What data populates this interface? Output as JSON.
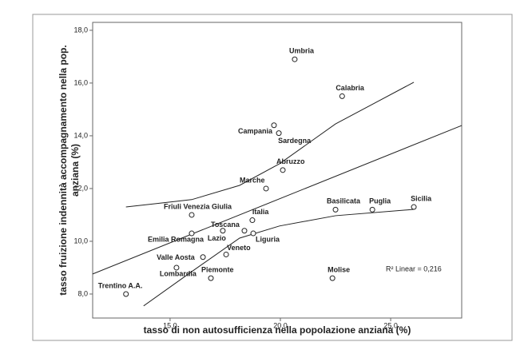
{
  "chart_data": {
    "type": "scatter",
    "xlabel": "tasso di non autosufficienza nella popolazione anziana (%)",
    "ylabel": [
      "tasso fruizione indennità accompagnamento nella pop.",
      "anziana (%)"
    ],
    "annotation": "R² Linear = 0,216",
    "point_labels": [
      "Umbria",
      "Calabria",
      "Campania",
      "Sardegna",
      "Abruzzo",
      "Marche",
      "Friuli Venezia Giulia",
      "Basilicata",
      "Puglia",
      "Sicilia",
      "Italia",
      "Toscana",
      "Lazio",
      "Emilia Romagna",
      "Liguria",
      "Veneto",
      "Valle Aosta",
      "Lombardia",
      "Piemonte",
      "Trentino A.A.",
      "Molise"
    ],
    "x": [
      20.65,
      22.8,
      19.71,
      19.93,
      20.11,
      19.35,
      15.98,
      22.5,
      24.17,
      26.05,
      18.73,
      18.37,
      17.39,
      15.98,
      18.77,
      17.54,
      16.49,
      15.29,
      16.85,
      13.0,
      22.36
    ],
    "y": [
      16.9,
      15.5,
      14.4,
      14.1,
      12.7,
      12.0,
      11.0,
      11.2,
      11.2,
      11.3,
      10.8,
      10.4,
      10.4,
      10.3,
      10.3,
      9.5,
      9.4,
      9.0,
      8.6,
      8.0,
      8.6
    ],
    "fit": {
      "x": [
        11.49,
        28.22
      ],
      "y": [
        8.76,
        14.39
      ]
    },
    "ci_upper": {
      "x": [
        13.0,
        15.98,
        18.15,
        19.96,
        22.5,
        26.05
      ],
      "y": [
        11.3,
        11.58,
        12.12,
        12.94,
        14.45,
        16.03
      ]
    },
    "ci_lower": {
      "x": [
        13.8,
        15.98,
        18.15,
        19.96,
        22.5,
        26.05
      ],
      "y": [
        7.55,
        8.85,
        10.12,
        10.58,
        10.97,
        11.21
      ]
    },
    "xlim": [
      11.49,
      28.22
    ],
    "ylim": [
      7.09,
      18.3
    ],
    "xticks": [
      {
        "value": 15,
        "label": "15,0"
      },
      {
        "value": 20,
        "label": "20,0"
      },
      {
        "value": 25,
        "label": "25,0"
      }
    ],
    "yticks": [
      {
        "value": 8,
        "label": "8,0"
      },
      {
        "value": 10,
        "label": "10,0"
      },
      {
        "value": 12,
        "label": "12,0"
      },
      {
        "value": 14,
        "label": "14,0"
      },
      {
        "value": 16,
        "label": "16,0"
      },
      {
        "value": 18,
        "label": "18,0"
      }
    ],
    "color": "#222222"
  }
}
